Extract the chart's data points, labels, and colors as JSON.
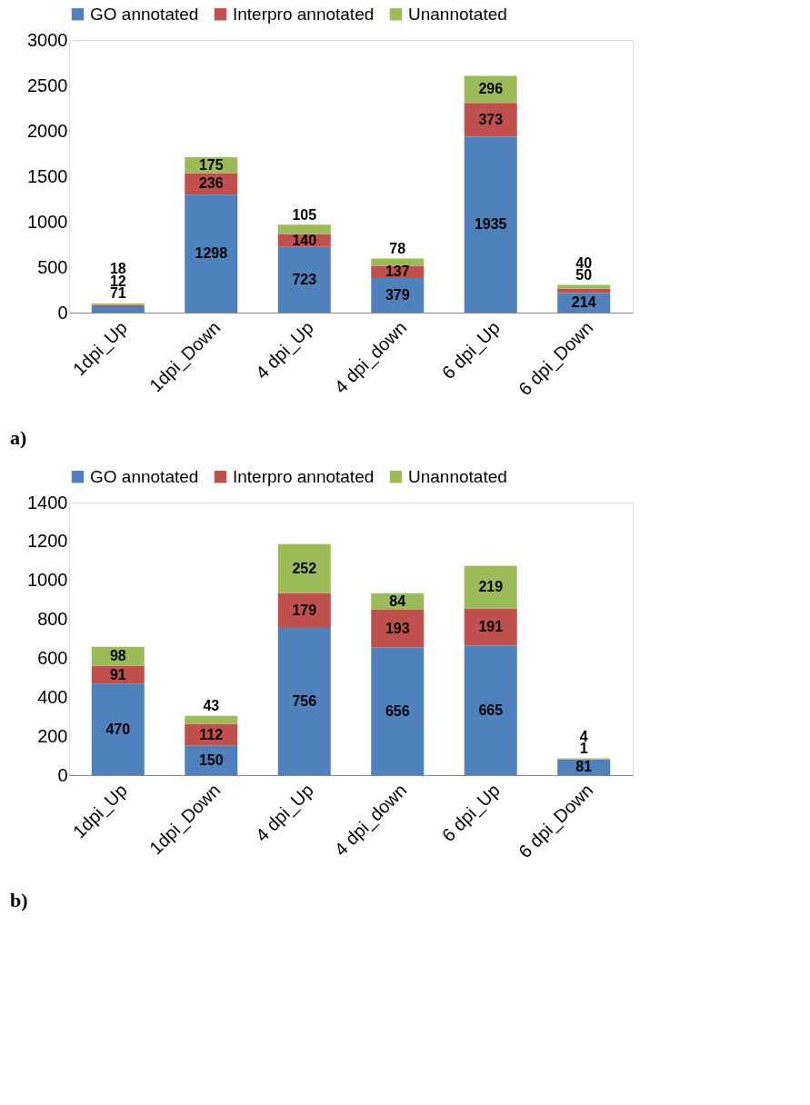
{
  "chart_data": [
    {
      "type": "bar",
      "stacked": true,
      "data_labels": true,
      "legend": "top",
      "grid": false,
      "categories": [
        "1dpi_Up",
        "1dpi_Down",
        "4 dpi_Up",
        "4 dpi_down",
        "6 dpi_Up",
        "6 dpi_Down"
      ],
      "series": [
        {
          "name": "GO annotated",
          "color": "#4f81bd",
          "values": [
            71,
            1298,
            723,
            379,
            1935,
            214
          ]
        },
        {
          "name": "Interpro annotated",
          "color": "#c0504d",
          "values": [
            12,
            236,
            140,
            137,
            373,
            50
          ]
        },
        {
          "name": "Unannotated",
          "color": "#9bbb59",
          "values": [
            18,
            175,
            105,
            78,
            296,
            40
          ]
        }
      ],
      "ylim": [
        0,
        3000
      ],
      "yticks": [
        0,
        500,
        1000,
        1500,
        2000,
        2500,
        3000
      ],
      "annotations": [
        "a)"
      ]
    },
    {
      "type": "bar",
      "stacked": true,
      "data_labels": true,
      "legend": "top",
      "grid": false,
      "categories": [
        "1dpi_Up",
        "1dpi_Down",
        "4 dpi_Up",
        "4 dpi_down",
        "6 dpi_Up",
        "6 dpi_Down"
      ],
      "series": [
        {
          "name": "GO annotated",
          "color": "#4f81bd",
          "values": [
            470,
            150,
            756,
            656,
            665,
            81
          ]
        },
        {
          "name": "Interpro annotated",
          "color": "#c0504d",
          "values": [
            91,
            112,
            179,
            193,
            191,
            1
          ]
        },
        {
          "name": "Unannotated",
          "color": "#9bbb59",
          "values": [
            98,
            43,
            252,
            84,
            219,
            4
          ]
        }
      ],
      "ylim": [
        0,
        1400
      ],
      "yticks": [
        0,
        200,
        400,
        600,
        800,
        1000,
        1200,
        1400
      ],
      "annotations": [
        "b)"
      ]
    }
  ]
}
